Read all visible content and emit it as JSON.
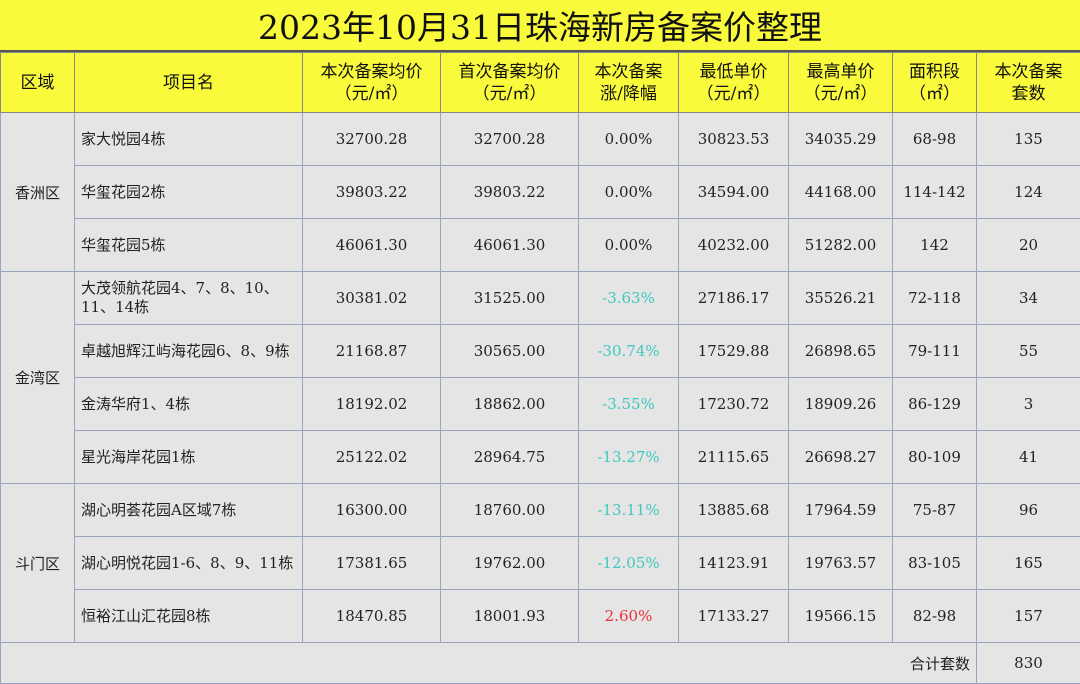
{
  "title": "2023年10月31日珠海新房备案价整理",
  "headers": {
    "region": "区域",
    "project": "项目名",
    "avg_price_1": "本次备案均价",
    "avg_price_2": "（元/㎡）",
    "first_avg_1": "首次备案均价",
    "first_avg_2": "（元/㎡）",
    "change_1": "本次备案",
    "change_2": "涨/降幅",
    "min_price_1": "最低单价",
    "min_price_2": "（元/㎡）",
    "max_price_1": "最高单价",
    "max_price_2": "（元/㎡）",
    "area_1": "面积段",
    "area_2": "（㎡）",
    "units_1": "本次备案",
    "units_2": "套数"
  },
  "regions": [
    "香洲区",
    "金湾区",
    "斗门区"
  ],
  "rows": [
    {
      "project": "家大悦园4栋",
      "avg": "32700.28",
      "first": "32700.28",
      "change": "0.00%",
      "min": "30823.53",
      "max": "34035.29",
      "area": "68-98",
      "units": "135"
    },
    {
      "project": "华玺花园2栋",
      "avg": "39803.22",
      "first": "39803.22",
      "change": "0.00%",
      "min": "34594.00",
      "max": "44168.00",
      "area": "114-142",
      "units": "124"
    },
    {
      "project": "华玺花园5栋",
      "avg": "46061.30",
      "first": "46061.30",
      "change": "0.00%",
      "min": "40232.00",
      "max": "51282.00",
      "area": "142",
      "units": "20"
    },
    {
      "project": "大茂领航花园4、7、8、10、11、14栋",
      "avg": "30381.02",
      "first": "31525.00",
      "change": "-3.63%",
      "min": "27186.17",
      "max": "35526.21",
      "area": "72-118",
      "units": "34"
    },
    {
      "project": "卓越旭辉江屿海花园6、8、9栋",
      "avg": "21168.87",
      "first": "30565.00",
      "change": "-30.74%",
      "min": "17529.88",
      "max": "26898.65",
      "area": "79-111",
      "units": "55"
    },
    {
      "project": "金涛华府1、4栋",
      "avg": "18192.02",
      "first": "18862.00",
      "change": "-3.55%",
      "min": "17230.72",
      "max": "18909.26",
      "area": "86-129",
      "units": "3"
    },
    {
      "project": "星光海岸花园1栋",
      "avg": "25122.02",
      "first": "28964.75",
      "change": "-13.27%",
      "min": "21115.65",
      "max": "26698.27",
      "area": "80-109",
      "units": "41"
    },
    {
      "project": "湖心明荟花园A区域7栋",
      "avg": "16300.00",
      "first": "18760.00",
      "change": "-13.11%",
      "min": "13885.68",
      "max": "17964.59",
      "area": "75-87",
      "units": "96"
    },
    {
      "project": "湖心明悦花园1-6、8、9、11栋",
      "avg": "17381.65",
      "first": "19762.00",
      "change": "-12.05%",
      "min": "14123.91",
      "max": "19763.57",
      "area": "83-105",
      "units": "165"
    },
    {
      "project": "恒裕江山汇花园8栋",
      "avg": "18470.85",
      "first": "18001.93",
      "change": "2.60%",
      "min": "17133.27",
      "max": "19566.15",
      "area": "82-98",
      "units": "157"
    }
  ],
  "total": {
    "label": "合计套数",
    "value": "830"
  },
  "colors": {
    "header_bg": "#fafa3c",
    "cell_bg": "#e5e5e5",
    "decrease": "#3ec9c0",
    "increase": "#e8333f"
  }
}
